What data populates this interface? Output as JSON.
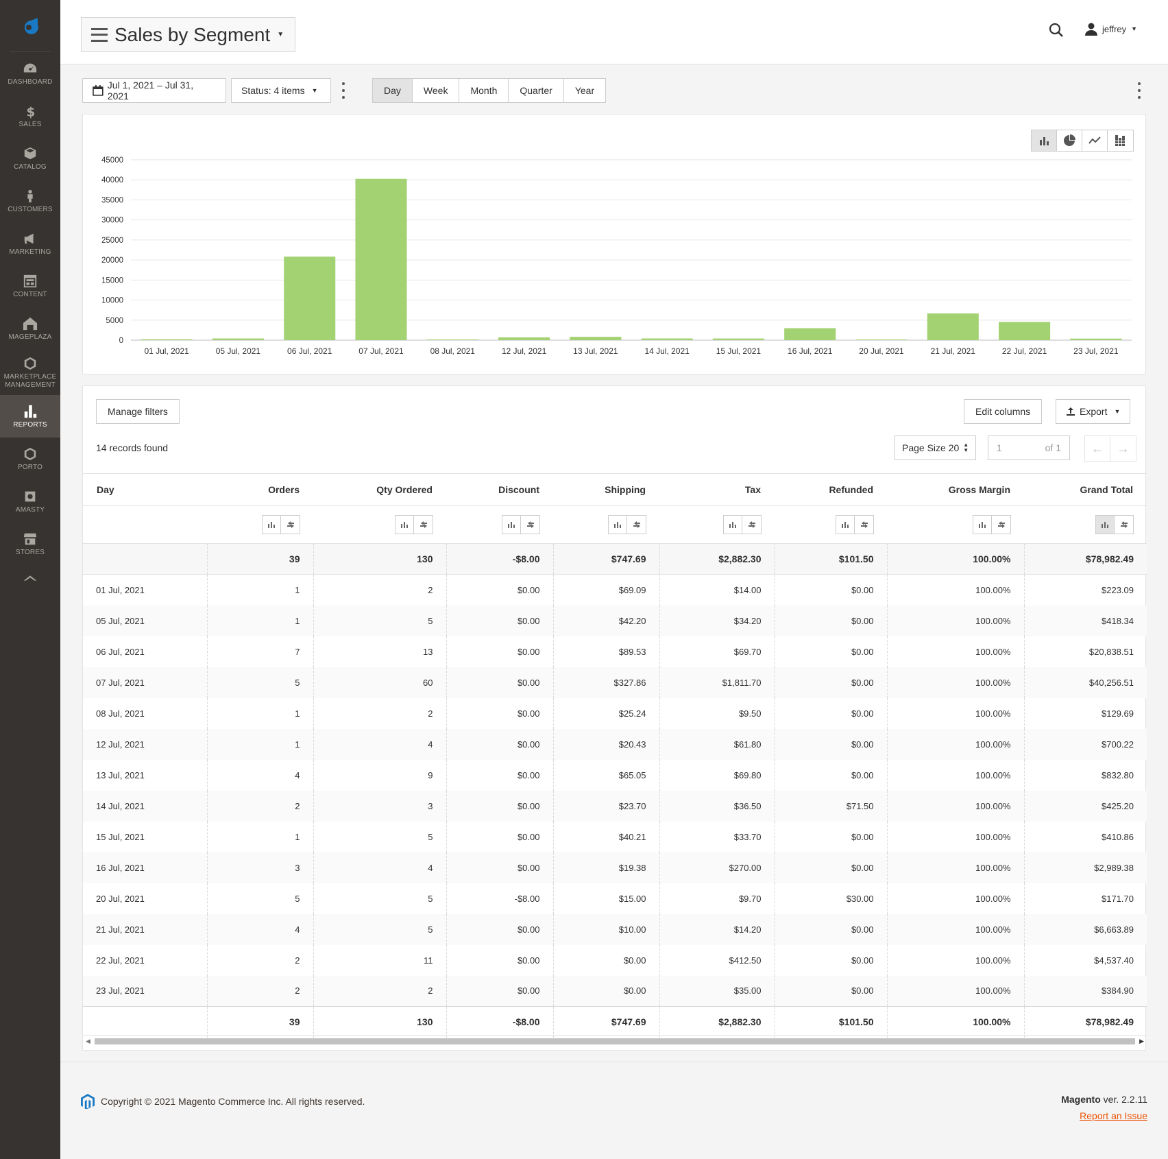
{
  "sidebar": {
    "items": [
      {
        "label": "DASHBOARD"
      },
      {
        "label": "SALES"
      },
      {
        "label": "CATALOG"
      },
      {
        "label": "CUSTOMERS"
      },
      {
        "label": "MARKETING"
      },
      {
        "label": "CONTENT"
      },
      {
        "label": "MAGEPLAZA"
      },
      {
        "label": "MARKETPLACE MANAGEMENT"
      },
      {
        "label": "REPORTS"
      },
      {
        "label": "PORTO"
      },
      {
        "label": "AMASTY"
      },
      {
        "label": "STORES"
      }
    ]
  },
  "header": {
    "title": "Sales by Segment",
    "user": "jeffrey"
  },
  "toolbar": {
    "date_range": "Jul 1, 2021 – Jul 31, 2021",
    "status": "Status: 4 items",
    "periods": [
      "Day",
      "Week",
      "Month",
      "Quarter",
      "Year"
    ],
    "active_period": "Day"
  },
  "chart_data": {
    "type": "bar",
    "title": "",
    "xlabel": "",
    "ylabel": "",
    "ylim": [
      0,
      45000
    ],
    "yticks": [
      0,
      5000,
      10000,
      15000,
      20000,
      25000,
      30000,
      35000,
      40000,
      45000
    ],
    "grid": true,
    "color": "#a3d273",
    "categories": [
      "01 Jul, 2021",
      "05 Jul, 2021",
      "06 Jul, 2021",
      "07 Jul, 2021",
      "08 Jul, 2021",
      "12 Jul, 2021",
      "13 Jul, 2021",
      "14 Jul, 2021",
      "15 Jul, 2021",
      "16 Jul, 2021",
      "20 Jul, 2021",
      "21 Jul, 2021",
      "22 Jul, 2021",
      "23 Jul, 2021"
    ],
    "values": [
      223.09,
      418.34,
      20838.51,
      40256.51,
      129.69,
      700.22,
      832.8,
      425.2,
      410.86,
      2989.38,
      171.7,
      6663.89,
      4537.4,
      384.9
    ]
  },
  "grid": {
    "manage_filters": "Manage filters",
    "edit_columns": "Edit columns",
    "export": "Export",
    "records_found": "14 records found",
    "page_size": "Page Size 20",
    "page_current": "1",
    "page_of": "of 1",
    "columns": [
      "Day",
      "Orders",
      "Qty Ordered",
      "Discount",
      "Shipping",
      "Tax",
      "Refunded",
      "Gross Margin",
      "Grand Total"
    ],
    "totals": [
      "",
      "39",
      "130",
      "-$8.00",
      "$747.69",
      "$2,882.30",
      "$101.50",
      "100.00%",
      "$78,982.49"
    ],
    "rows": [
      [
        "01 Jul, 2021",
        "1",
        "2",
        "$0.00",
        "$69.09",
        "$14.00",
        "$0.00",
        "100.00%",
        "$223.09"
      ],
      [
        "05 Jul, 2021",
        "1",
        "5",
        "$0.00",
        "$42.20",
        "$34.20",
        "$0.00",
        "100.00%",
        "$418.34"
      ],
      [
        "06 Jul, 2021",
        "7",
        "13",
        "$0.00",
        "$89.53",
        "$69.70",
        "$0.00",
        "100.00%",
        "$20,838.51"
      ],
      [
        "07 Jul, 2021",
        "5",
        "60",
        "$0.00",
        "$327.86",
        "$1,811.70",
        "$0.00",
        "100.00%",
        "$40,256.51"
      ],
      [
        "08 Jul, 2021",
        "1",
        "2",
        "$0.00",
        "$25.24",
        "$9.50",
        "$0.00",
        "100.00%",
        "$129.69"
      ],
      [
        "12 Jul, 2021",
        "1",
        "4",
        "$0.00",
        "$20.43",
        "$61.80",
        "$0.00",
        "100.00%",
        "$700.22"
      ],
      [
        "13 Jul, 2021",
        "4",
        "9",
        "$0.00",
        "$65.05",
        "$69.80",
        "$0.00",
        "100.00%",
        "$832.80"
      ],
      [
        "14 Jul, 2021",
        "2",
        "3",
        "$0.00",
        "$23.70",
        "$36.50",
        "$71.50",
        "100.00%",
        "$425.20"
      ],
      [
        "15 Jul, 2021",
        "1",
        "5",
        "$0.00",
        "$40.21",
        "$33.70",
        "$0.00",
        "100.00%",
        "$410.86"
      ],
      [
        "16 Jul, 2021",
        "3",
        "4",
        "$0.00",
        "$19.38",
        "$270.00",
        "$0.00",
        "100.00%",
        "$2,989.38"
      ],
      [
        "20 Jul, 2021",
        "5",
        "5",
        "-$8.00",
        "$15.00",
        "$9.70",
        "$30.00",
        "100.00%",
        "$171.70"
      ],
      [
        "21 Jul, 2021",
        "4",
        "5",
        "$0.00",
        "$10.00",
        "$14.20",
        "$0.00",
        "100.00%",
        "$6,663.89"
      ],
      [
        "22 Jul, 2021",
        "2",
        "11",
        "$0.00",
        "$0.00",
        "$412.50",
        "$0.00",
        "100.00%",
        "$4,537.40"
      ],
      [
        "23 Jul, 2021",
        "2",
        "2",
        "$0.00",
        "$0.00",
        "$35.00",
        "$0.00",
        "100.00%",
        "$384.90"
      ]
    ]
  },
  "footer": {
    "copyright": "Copyright © 2021 Magento Commerce Inc. All rights reserved.",
    "brand": "Magento",
    "version": "ver. 2.2.11",
    "report_issue": "Report an Issue"
  },
  "colors": {
    "sidebar_bg": "#373330",
    "accent": "#eb5202",
    "bar": "#a3d273"
  }
}
